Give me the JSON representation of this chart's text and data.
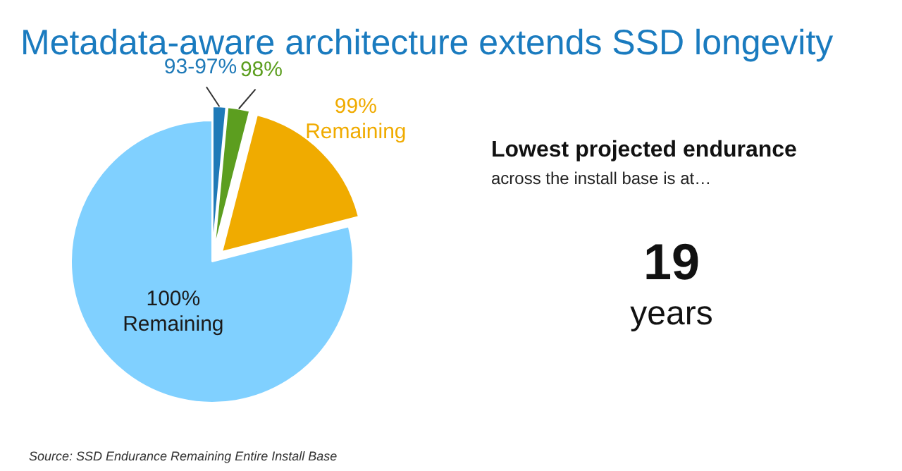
{
  "chart_data": [
    {
      "type": "pie",
      "title": "Metadata-aware architecture extends SSD longevity",
      "categories": [
        "93-97%",
        "98%",
        "99% Remaining",
        "100% Remaining"
      ],
      "values": [
        1.5,
        2.5,
        17,
        79
      ],
      "colors": [
        "#1f7ab8",
        "#5c9e1f",
        "#f0ab00",
        "#80d0ff"
      ],
      "annotations": [
        "Source: SSD Endurance Remaining Entire Install Base"
      ]
    },
    {
      "type": "other",
      "title": "Lowest projected endurance",
      "subtitle": "across the install base is at…",
      "annotations": [
        "19",
        "years"
      ]
    }
  ]
}
